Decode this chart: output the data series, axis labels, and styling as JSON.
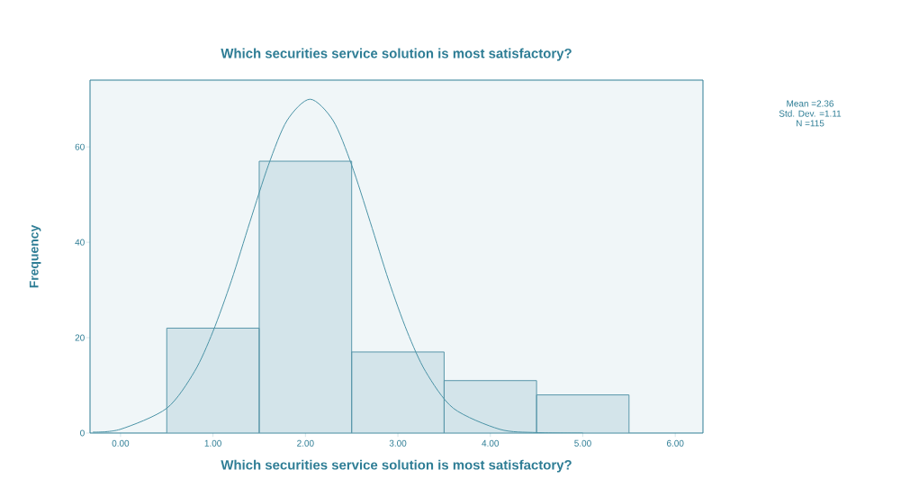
{
  "chart_data": {
    "type": "histogram",
    "title": "Which securities service solution is most satisfactory?",
    "xlabel": "Which securities service solution is most satisfactory?",
    "ylabel": "Frequency",
    "bins": [
      0.5,
      1.5,
      2.5,
      3.5,
      4.5,
      5.5
    ],
    "values": [
      22,
      57,
      17,
      11,
      8
    ],
    "color": "#d3e4ea",
    "series": [
      {
        "type": "line",
        "color": "#4a93a6",
        "x": [
          -0.3,
          0.0,
          0.5,
          0.8,
          1.0,
          1.2,
          1.4,
          1.6,
          1.8,
          2.05,
          2.3,
          2.5,
          2.7,
          2.9,
          3.1,
          3.3,
          3.6,
          4.1,
          4.5,
          5.0
        ],
        "values": [
          0.2,
          0.8,
          5.2,
          12.9,
          21.3,
          32.0,
          44.3,
          56.2,
          65.5,
          70,
          65.5,
          56.2,
          44.3,
          32.0,
          21.3,
          12.9,
          5.2,
          0.8,
          0.1,
          0
        ]
      }
    ],
    "xlim": [
      -0.33,
      6.3
    ],
    "ylim": [
      0,
      74
    ],
    "xticks": [
      {
        "value": 0,
        "label": "0.00"
      },
      {
        "value": 1,
        "label": "1.00"
      },
      {
        "value": 2,
        "label": "2.00"
      },
      {
        "value": 3,
        "label": "3.00"
      },
      {
        "value": 4,
        "label": "4.00"
      },
      {
        "value": 5,
        "label": "5.00"
      },
      {
        "value": 6,
        "label": "6.00"
      }
    ],
    "yticks": [
      0,
      20,
      40,
      60
    ],
    "annotations": [
      "Mean =2.36",
      "Std. Dev. =1.11",
      "N =115"
    ]
  }
}
